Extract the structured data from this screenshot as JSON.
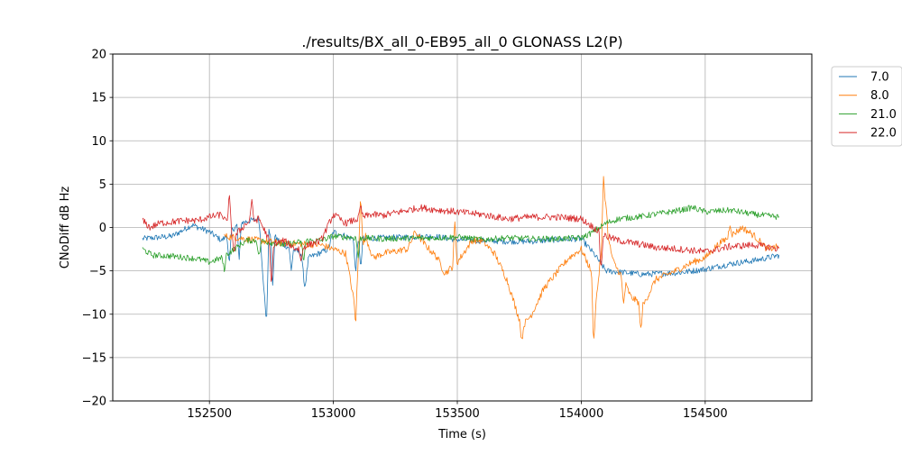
{
  "chart_data": {
    "type": "line",
    "title": "./results/BX_all_0-EB95_all_0 GLONASS L2(P)",
    "xlabel": "Time (s)",
    "ylabel": "CNoDiff dB Hz",
    "xlim": [
      152110,
      154930
    ],
    "ylim": [
      -20,
      20
    ],
    "xticks": [
      152500,
      153000,
      153500,
      154000,
      154500
    ],
    "yticks": [
      -20,
      -15,
      -10,
      -5,
      0,
      5,
      10,
      15,
      20
    ],
    "xtick_labels": [
      "152500",
      "153000",
      "153500",
      "154000",
      "154500"
    ],
    "ytick_labels": [
      "−20",
      "−15",
      "−10",
      "−5",
      "0",
      "5",
      "10",
      "15",
      "20"
    ],
    "grid": true,
    "legend_position": "upper-right-outside",
    "x_start": 152230,
    "x_end": 154800,
    "series": [
      {
        "name": "7.0",
        "color": "#1f77b4",
        "keypoints": [
          [
            152230,
            -1.3
          ],
          [
            152350,
            -1.0
          ],
          [
            152430,
            0.3
          ],
          [
            152500,
            -0.5
          ],
          [
            152550,
            -1.5
          ],
          [
            152620,
            0.5
          ],
          [
            152700,
            1.0
          ],
          [
            152730,
            -11.2
          ],
          [
            152740,
            -0.5
          ],
          [
            152800,
            -2.0
          ],
          [
            152870,
            -3.0
          ],
          [
            152885,
            -7.0
          ],
          [
            152900,
            -3.5
          ],
          [
            152980,
            -2.5
          ],
          [
            153000,
            -0.5
          ],
          [
            153080,
            -1.3
          ],
          [
            153200,
            -1.2
          ],
          [
            153400,
            -1.0
          ],
          [
            153500,
            -1.4
          ],
          [
            153600,
            -1.5
          ],
          [
            153700,
            -1.6
          ],
          [
            153800,
            -1.6
          ],
          [
            153900,
            -1.4
          ],
          [
            154000,
            -1.3
          ],
          [
            154050,
            -3.0
          ],
          [
            154100,
            -5.0
          ],
          [
            154250,
            -5.4
          ],
          [
            154400,
            -5.2
          ],
          [
            154500,
            -4.8
          ],
          [
            154600,
            -4.2
          ],
          [
            154700,
            -3.8
          ],
          [
            154800,
            -3.2
          ]
        ],
        "noise": 0.35,
        "spikes": [
          [
            152580,
            -4.5
          ],
          [
            152620,
            -3.8
          ],
          [
            152755,
            -7.0
          ],
          [
            152830,
            -5.0
          ],
          [
            152885,
            -7.0
          ],
          [
            153090,
            -5.5
          ],
          [
            153110,
            -4.8
          ]
        ]
      },
      {
        "name": "8.0",
        "color": "#ff7f0e",
        "keypoints": [
          [
            152560,
            -1.0
          ],
          [
            152700,
            -1.5
          ],
          [
            152800,
            -1.8
          ],
          [
            152950,
            -2.0
          ],
          [
            153050,
            -3.0
          ],
          [
            153080,
            -8.0
          ],
          [
            153100,
            -4.0
          ],
          [
            153130,
            -1.0
          ],
          [
            153160,
            -3.5
          ],
          [
            153200,
            -3.0
          ],
          [
            153300,
            -2.5
          ],
          [
            153330,
            -0.5
          ],
          [
            153370,
            -2.0
          ],
          [
            153420,
            -3.5
          ],
          [
            153450,
            -5.3
          ],
          [
            153500,
            -4.0
          ],
          [
            153560,
            -1.5
          ],
          [
            153600,
            -1.5
          ],
          [
            153650,
            -3.0
          ],
          [
            153700,
            -6.0
          ],
          [
            153760,
            -11.5
          ],
          [
            153800,
            -10.0
          ],
          [
            153850,
            -7.0
          ],
          [
            153950,
            -3.5
          ],
          [
            154000,
            -2.5
          ],
          [
            154040,
            -5.0
          ],
          [
            154060,
            -8.5
          ],
          [
            154080,
            -3.0
          ],
          [
            154110,
            -1.5
          ],
          [
            154130,
            -4.0
          ],
          [
            154170,
            -6.0
          ],
          [
            154200,
            -8.0
          ],
          [
            154250,
            -9.0
          ],
          [
            154300,
            -6.0
          ],
          [
            154380,
            -5.0
          ],
          [
            154450,
            -4.0
          ],
          [
            154500,
            -3.5
          ],
          [
            154550,
            -2.0
          ],
          [
            154600,
            -1.0
          ],
          [
            154650,
            0.0
          ],
          [
            154700,
            -1.0
          ],
          [
            154750,
            -2.5
          ],
          [
            154800,
            -2.2
          ]
        ],
        "noise": 0.4,
        "spikes": [
          [
            153090,
            -11.3
          ],
          [
            153110,
            4.2
          ],
          [
            153280,
            -2.5
          ],
          [
            153490,
            0.5
          ],
          [
            153760,
            -13.1
          ],
          [
            154050,
            -13.6
          ],
          [
            154090,
            6.0
          ],
          [
            154100,
            3.2
          ],
          [
            154170,
            -9.0
          ],
          [
            154240,
            -11.8
          ],
          [
            154600,
            0.5
          ]
        ]
      },
      {
        "name": "21.0",
        "color": "#2ca02c",
        "keypoints": [
          [
            152230,
            -2.5
          ],
          [
            152270,
            -3.2
          ],
          [
            152350,
            -3.3
          ],
          [
            152450,
            -3.6
          ],
          [
            152500,
            -4.0
          ],
          [
            152550,
            -3.5
          ],
          [
            152600,
            -2.5
          ],
          [
            152650,
            -1.5
          ],
          [
            152700,
            -1.5
          ],
          [
            152800,
            -2.0
          ],
          [
            152900,
            -1.5
          ],
          [
            152950,
            -1.5
          ],
          [
            153000,
            -1.0
          ],
          [
            153100,
            -1.2
          ],
          [
            153200,
            -1.3
          ],
          [
            153400,
            -1.2
          ],
          [
            153500,
            -1.1
          ],
          [
            153600,
            -1.4
          ],
          [
            153700,
            -1.2
          ],
          [
            153800,
            -1.3
          ],
          [
            153900,
            -1.3
          ],
          [
            154000,
            -1.2
          ],
          [
            154050,
            -0.5
          ],
          [
            154100,
            0.5
          ],
          [
            154150,
            1.0
          ],
          [
            154250,
            1.3
          ],
          [
            154400,
            2.0
          ],
          [
            154450,
            2.3
          ],
          [
            154500,
            1.8
          ],
          [
            154600,
            2.0
          ],
          [
            154700,
            1.5
          ],
          [
            154800,
            1.2
          ]
        ],
        "noise": 0.35,
        "spikes": [
          [
            152560,
            -5.0
          ],
          [
            152700,
            -3.5
          ],
          [
            152880,
            -4.0
          ],
          [
            153100,
            -3.5
          ]
        ]
      },
      {
        "name": "22.0",
        "color": "#d62728",
        "keypoints": [
          [
            152230,
            0.8
          ],
          [
            152260,
            0.0
          ],
          [
            152300,
            0.5
          ],
          [
            152400,
            0.8
          ],
          [
            152450,
            0.8
          ],
          [
            152500,
            1.2
          ],
          [
            152550,
            1.5
          ],
          [
            152600,
            -1.0
          ],
          [
            152650,
            0.5
          ],
          [
            152700,
            1.0
          ],
          [
            152750,
            -2.0
          ],
          [
            152800,
            -1.5
          ],
          [
            152850,
            -2.5
          ],
          [
            152900,
            -2.0
          ],
          [
            152950,
            -1.5
          ],
          [
            153000,
            1.5
          ],
          [
            153050,
            0.5
          ],
          [
            153100,
            1.0
          ],
          [
            153150,
            1.5
          ],
          [
            153200,
            1.4
          ],
          [
            153300,
            2.0
          ],
          [
            153350,
            2.3
          ],
          [
            153400,
            2.1
          ],
          [
            153500,
            1.8
          ],
          [
            153600,
            1.5
          ],
          [
            153700,
            1.0
          ],
          [
            153800,
            1.2
          ],
          [
            153900,
            1.2
          ],
          [
            154000,
            1.0
          ],
          [
            154050,
            0.0
          ],
          [
            154100,
            -1.0
          ],
          [
            154150,
            -1.5
          ],
          [
            154250,
            -2.0
          ],
          [
            154300,
            -2.3
          ],
          [
            154400,
            -2.5
          ],
          [
            154500,
            -2.8
          ],
          [
            154600,
            -2.2
          ],
          [
            154700,
            -2.0
          ],
          [
            154800,
            -2.5
          ]
        ],
        "noise": 0.4,
        "spikes": [
          [
            152580,
            3.8
          ],
          [
            152600,
            -3.0
          ],
          [
            152670,
            3.2
          ],
          [
            152750,
            -7.0
          ],
          [
            152870,
            -4.0
          ],
          [
            153110,
            2.5
          ],
          [
            154080,
            -5.0
          ]
        ]
      }
    ]
  }
}
